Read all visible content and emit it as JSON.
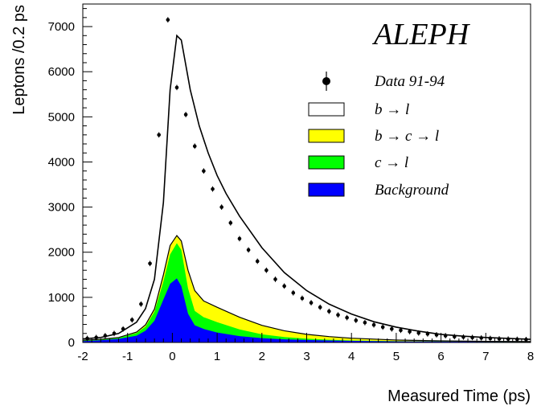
{
  "chart_data": {
    "type": "area",
    "title": "ALEPH",
    "xlabel": "Measured Time (ps)",
    "ylabel": "Leptons /0.2 ps",
    "xlim": [
      -2,
      8
    ],
    "ylim": [
      0,
      7500
    ],
    "x_ticks": [
      -2,
      -1,
      0,
      1,
      2,
      3,
      4,
      5,
      6,
      7,
      8
    ],
    "y_ticks": [
      0,
      1000,
      2000,
      3000,
      4000,
      5000,
      6000,
      7000
    ],
    "legend": {
      "position": "top-right",
      "entries": [
        {
          "label": "Data 91-94",
          "marker": "point-errorbar",
          "color": "#000000"
        },
        {
          "label": "b → l",
          "marker": "box",
          "color": "#ffffff"
        },
        {
          "label": "b → c → l",
          "marker": "box",
          "color": "#ffff00"
        },
        {
          "label": "c → l",
          "marker": "box",
          "color": "#00ff00"
        },
        {
          "label": "Background",
          "marker": "box",
          "color": "#0000ff"
        }
      ]
    },
    "data_points": {
      "x": [
        -1.9,
        -1.7,
        -1.5,
        -1.3,
        -1.1,
        -0.9,
        -0.7,
        -0.5,
        -0.3,
        -0.1,
        0.1,
        0.3,
        0.5,
        0.7,
        0.9,
        1.1,
        1.3,
        1.5,
        1.7,
        1.9,
        2.1,
        2.3,
        2.5,
        2.7,
        2.9,
        3.1,
        3.3,
        3.5,
        3.7,
        3.9,
        4.1,
        4.3,
        4.5,
        4.7,
        4.9,
        5.1,
        5.3,
        5.5,
        5.7,
        5.9,
        6.1,
        6.3,
        6.5,
        6.7,
        6.9,
        7.1,
        7.3,
        7.5,
        7.7,
        7.9
      ],
      "y": [
        90,
        110,
        150,
        200,
        300,
        500,
        850,
        1750,
        4600,
        7150,
        5650,
        5050,
        4350,
        3800,
        3400,
        3000,
        2650,
        2300,
        2050,
        1800,
        1600,
        1400,
        1250,
        1100,
        980,
        880,
        780,
        690,
        610,
        550,
        490,
        440,
        390,
        340,
        300,
        270,
        240,
        210,
        190,
        170,
        150,
        130,
        120,
        110,
        100,
        90,
        80,
        75,
        70,
        65
      ],
      "yerr": 60
    },
    "total_fit": {
      "x": [
        -2,
        -1.6,
        -1.2,
        -0.8,
        -0.6,
        -0.4,
        -0.2,
        -0.05,
        0.1,
        0.2,
        0.4,
        0.6,
        0.8,
        1.0,
        1.2,
        1.5,
        2.0,
        2.5,
        3.0,
        3.5,
        4.0,
        4.5,
        5.0,
        5.5,
        6.0,
        6.5,
        7.0,
        7.5,
        8.0
      ],
      "y": [
        80,
        110,
        200,
        450,
        750,
        1400,
        3100,
        5600,
        6800,
        6700,
        5600,
        4800,
        4200,
        3700,
        3300,
        2800,
        2100,
        1550,
        1150,
        850,
        630,
        460,
        340,
        250,
        180,
        140,
        110,
        90,
        70
      ]
    },
    "stack_top_b_c_l": {
      "x": [
        -2,
        -1.6,
        -1.2,
        -0.8,
        -0.6,
        -0.4,
        -0.2,
        -0.05,
        0.1,
        0.2,
        0.35,
        0.5,
        0.7,
        1.0,
        1.5,
        2.0,
        2.5,
        3.0,
        3.5,
        4.0,
        5.0,
        6.0,
        7.0,
        8.0
      ],
      "y": [
        50,
        70,
        110,
        230,
        390,
        740,
        1500,
        2150,
        2370,
        2250,
        1600,
        1150,
        920,
        780,
        560,
        380,
        260,
        180,
        130,
        95,
        55,
        35,
        25,
        20
      ]
    },
    "stack_top_c_l": {
      "x": [
        -2,
        -1.6,
        -1.2,
        -0.8,
        -0.6,
        -0.4,
        -0.2,
        -0.05,
        0.1,
        0.2,
        0.35,
        0.5,
        0.7,
        1.0,
        1.5,
        2.0,
        2.5,
        3.0,
        3.5,
        4.0,
        5.0,
        6.0,
        7.0,
        8.0
      ],
      "y": [
        40,
        60,
        100,
        210,
        350,
        680,
        1350,
        1950,
        2200,
        2050,
        1200,
        700,
        560,
        450,
        290,
        180,
        120,
        85,
        60,
        45,
        30,
        22,
        18,
        15
      ]
    },
    "background": {
      "x": [
        -2,
        -1.6,
        -1.2,
        -0.8,
        -0.6,
        -0.4,
        -0.2,
        -0.05,
        0.1,
        0.2,
        0.35,
        0.5,
        0.7,
        1.0,
        1.5,
        2.0,
        2.5,
        3.0,
        3.5,
        4.0,
        5.0,
        6.0,
        7.0,
        8.0
      ],
      "y": [
        30,
        50,
        80,
        150,
        260,
        480,
        950,
        1300,
        1420,
        1250,
        640,
        380,
        300,
        220,
        140,
        95,
        70,
        55,
        45,
        35,
        25,
        20,
        15,
        12
      ]
    }
  }
}
